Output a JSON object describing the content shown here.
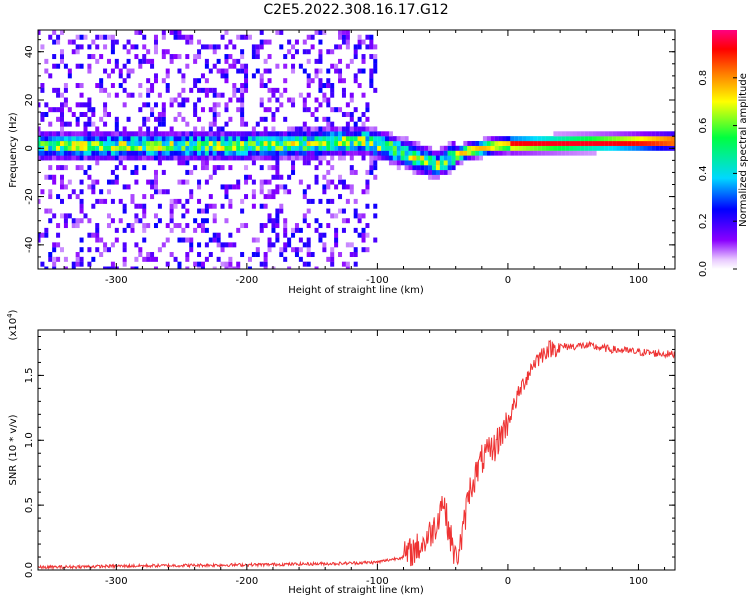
{
  "title": "C2E5.2022.308.16.17.G12",
  "chart_data": [
    {
      "type": "heatmap",
      "xlabel": "Height of straight line (km)",
      "ylabel": "Frequency (Hz)",
      "xlim": [
        -360,
        128
      ],
      "ylim": [
        -50,
        49
      ],
      "x_ticks": [
        -300,
        -200,
        -100,
        0,
        100
      ],
      "x_tick_labels": [
        "-300",
        "-200",
        "-100",
        "0",
        "100"
      ],
      "y_ticks": [
        -40,
        -20,
        0,
        20,
        40
      ],
      "y_tick_labels": [
        "-40",
        "-20",
        "0",
        "20",
        "40"
      ],
      "ridge_x": [
        -360,
        -300,
        -200,
        -110,
        -90,
        -70,
        -55,
        -45,
        -30,
        -10,
        0,
        50,
        100,
        128
      ],
      "ridge_y": [
        1,
        1,
        1,
        3,
        0,
        -4,
        -7,
        -4,
        -1,
        1,
        1.5,
        2,
        2.5,
        3
      ],
      "colorbar": {
        "label": "Normalized spectral amplitude",
        "range": [
          0,
          1
        ],
        "ticks": [
          0.0,
          0.2,
          0.4,
          0.6,
          0.8
        ],
        "tick_labels": [
          "0.0",
          "0.2",
          "0.4",
          "0.6",
          "0.8"
        ],
        "colors": [
          "#ffffff",
          "#8a00ff",
          "#0000ff",
          "#00e0ff",
          "#00ff40",
          "#ffff00",
          "#ff8000",
          "#ff0000",
          "#ff0080"
        ]
      }
    },
    {
      "type": "line",
      "xlabel": "Height of straight line (km)",
      "ylabel": "SNR (10 * v/v)",
      "y_scale_label": "(x10",
      "y_scale_exp": "4",
      "y_scale_close": ")",
      "xlim": [
        -360,
        128
      ],
      "ylim": [
        0,
        1.85
      ],
      "x_ticks": [
        -300,
        -200,
        -100,
        0,
        100
      ],
      "x_tick_labels": [
        "-300",
        "-200",
        "-100",
        "0",
        "100"
      ],
      "y_ticks": [
        0.0,
        0.5,
        1.0,
        1.5
      ],
      "y_tick_labels": [
        "0.0",
        "0.5",
        "1.0",
        "1.5"
      ],
      "line_color": "#ee3333",
      "x": [
        -360,
        -300,
        -200,
        -130,
        -100,
        -80,
        -65,
        -55,
        -50,
        -45,
        -40,
        -35,
        -30,
        -20,
        -10,
        0,
        10,
        20,
        30,
        40,
        60,
        80,
        100,
        128
      ],
      "y": [
        0.02,
        0.03,
        0.04,
        0.05,
        0.06,
        0.1,
        0.2,
        0.35,
        0.55,
        0.3,
        0.08,
        0.25,
        0.6,
        0.85,
        0.95,
        1.15,
        1.4,
        1.6,
        1.7,
        1.72,
        1.73,
        1.7,
        1.68,
        1.66
      ]
    }
  ]
}
